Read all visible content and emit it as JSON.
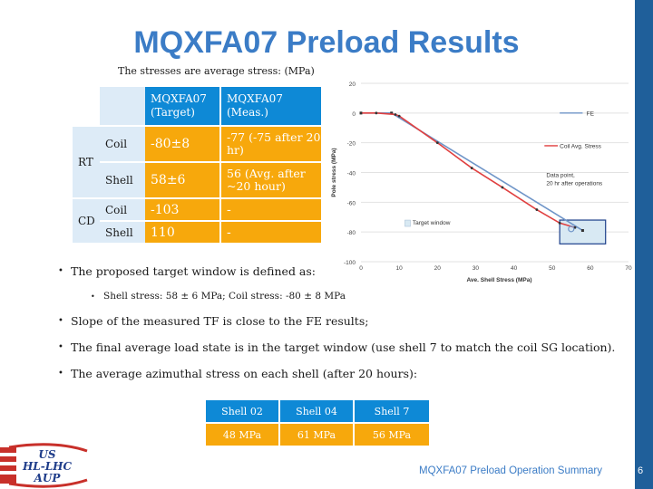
{
  "title": "MQXFA07 Preload Results",
  "subtitle": "The stresses are average stress:  (MPa)",
  "table": {
    "headers": [
      "MQXFA07 (Target)",
      "MQXFA07 (Meas.)"
    ],
    "groups": [
      "RT",
      "CD"
    ],
    "rows": [
      {
        "label": "Coil",
        "target": "-80±8",
        "meas": "-77 (-75 after 20 hr)"
      },
      {
        "label": "Shell",
        "target": "58±6",
        "meas": "56 (Avg. after ~20 hour)"
      },
      {
        "label": "Coil",
        "target": "-103",
        "meas": "-"
      },
      {
        "label": "Shell",
        "target": "110",
        "meas": "-"
      }
    ]
  },
  "bullets": {
    "b1": "The proposed target window is defined as:",
    "b1_sub": "Shell stress: 58 ± 6 MPa;     Coil stress: -80 ± 8 MPa",
    "b2": "Slope of the measured TF is close to the FE results;",
    "b3": "The final average load state is in the target window (use shell 7 to match the coil SG location).",
    "b4": "The average azimuthal stress on each shell (after 20 hours):"
  },
  "shell_table": {
    "headers": [
      "Shell 02",
      "Shell 04",
      "Shell 7"
    ],
    "values": [
      "48 MPa",
      "61 MPa",
      "56 MPa"
    ]
  },
  "logo_text": [
    "US",
    "HL-LHC",
    "AUP"
  ],
  "footer": "MQXFA07 Preload Operation Summary",
  "page_number": "6",
  "chart_data": {
    "type": "line",
    "xlabel": "Ave. Shell Stress (MPa)",
    "ylabel": "Pole stress (MPa)",
    "xlim": [
      0,
      70
    ],
    "ylim": [
      -100,
      20
    ],
    "xticks": [
      "0",
      "10",
      "20",
      "30",
      "40",
      "50",
      "60",
      "70"
    ],
    "yticks": [
      "20",
      "0",
      "-20",
      "-40",
      "-60",
      "-80",
      "-100"
    ],
    "series": [
      {
        "name": "FE",
        "color": "#6f95c8",
        "points": [
          [
            0,
            0
          ],
          [
            8,
            0
          ],
          [
            58,
            -79
          ]
        ]
      },
      {
        "name": "Coil Avg. Stress",
        "color": "#e04040",
        "points": [
          [
            0,
            0
          ],
          [
            4,
            0
          ],
          [
            9,
            -1
          ],
          [
            10,
            -2
          ],
          [
            20,
            -20
          ],
          [
            29,
            -37
          ],
          [
            37,
            -50
          ],
          [
            46,
            -65
          ],
          [
            52,
            -74
          ],
          [
            56,
            -77
          ]
        ]
      }
    ],
    "data_point": {
      "x": 55,
      "y": -78
    },
    "target_window": {
      "x": [
        52,
        64
      ],
      "y": [
        -88,
        -72
      ]
    },
    "annotations": {
      "data_point_label": "Data point, 20 hr after operations",
      "target_label": "Target window"
    }
  }
}
